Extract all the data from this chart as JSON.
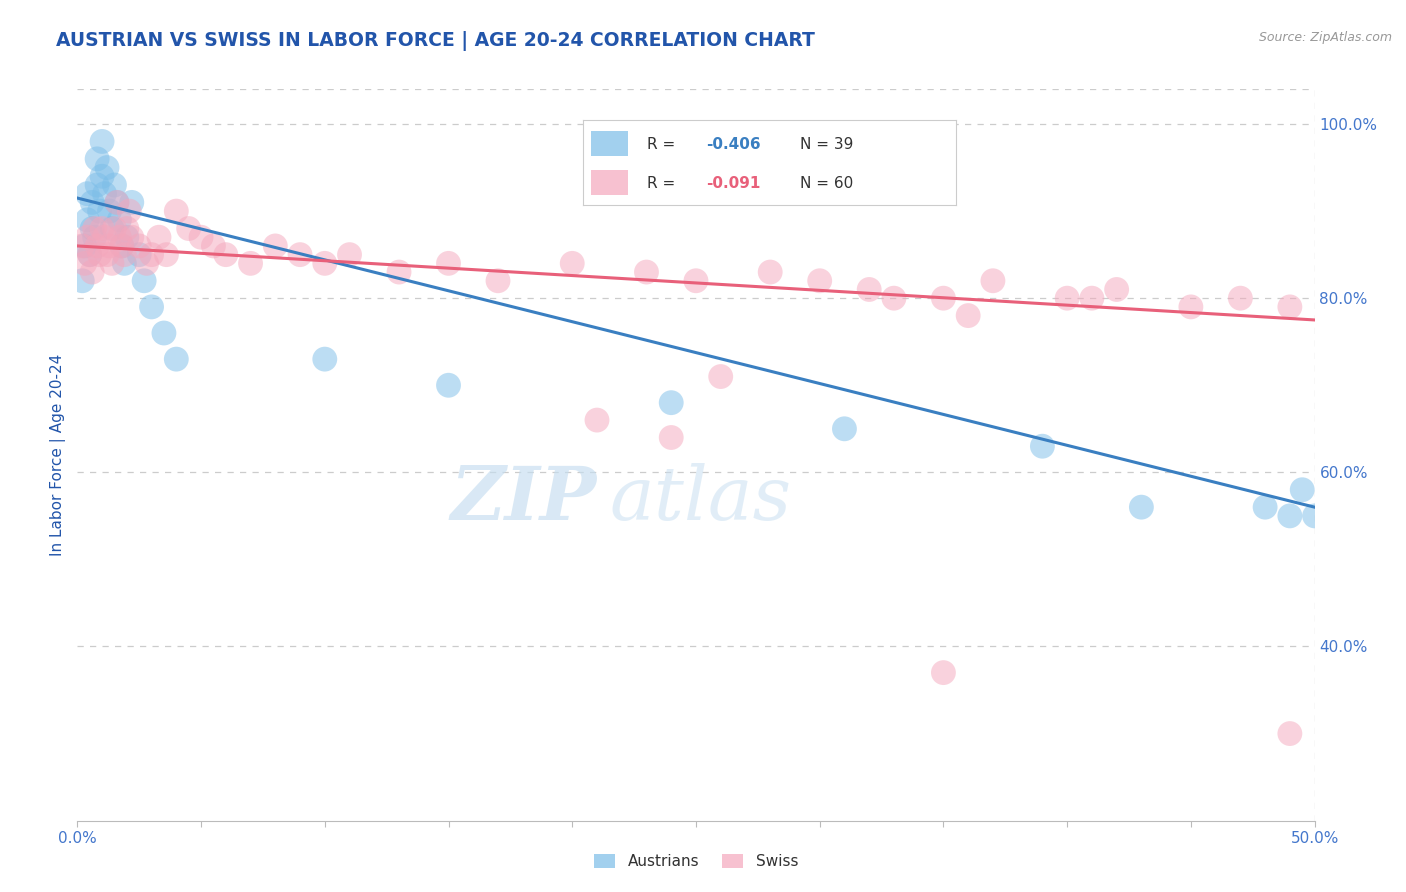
{
  "title": "AUSTRIAN VS SWISS IN LABOR FORCE | AGE 20-24 CORRELATION CHART",
  "source": "Source: ZipAtlas.com",
  "ylabel": "In Labor Force | Age 20-24",
  "xlim": [
    0.0,
    0.5
  ],
  "ylim": [
    0.2,
    1.04
  ],
  "yticks": [
    0.4,
    0.6,
    0.8,
    1.0
  ],
  "xticks": [
    0.0,
    0.05,
    0.1,
    0.15,
    0.2,
    0.25,
    0.3,
    0.35,
    0.4,
    0.45,
    0.5
  ],
  "ytick_labels": [
    "40.0%",
    "60.0%",
    "80.0%",
    "100.0%"
  ],
  "legend_blue_r_val": "-0.406",
  "legend_blue_n": "39",
  "legend_pink_r_val": "-0.091",
  "legend_pink_n": "60",
  "blue_color": "#7bbde8",
  "pink_color": "#f4a7bc",
  "blue_line_color": "#3a7fc1",
  "pink_line_color": "#e8607a",
  "title_color": "#2255aa",
  "axis_label_color": "#2255aa",
  "tick_color": "#4477cc",
  "grid_color": "#cccccc",
  "watermark_zip": "ZIP",
  "watermark_atlas": "atlas",
  "austrians_scatter_x": [
    0.002,
    0.003,
    0.004,
    0.004,
    0.005,
    0.006,
    0.006,
    0.007,
    0.008,
    0.008,
    0.009,
    0.01,
    0.01,
    0.011,
    0.012,
    0.013,
    0.014,
    0.015,
    0.016,
    0.017,
    0.018,
    0.019,
    0.02,
    0.022,
    0.025,
    0.027,
    0.03,
    0.035,
    0.04,
    0.1,
    0.15,
    0.24,
    0.31,
    0.39,
    0.43,
    0.48,
    0.49,
    0.495,
    0.5
  ],
  "austrians_scatter_y": [
    0.82,
    0.86,
    0.89,
    0.92,
    0.85,
    0.88,
    0.91,
    0.87,
    0.93,
    0.96,
    0.9,
    0.94,
    0.98,
    0.92,
    0.95,
    0.9,
    0.88,
    0.93,
    0.91,
    0.89,
    0.86,
    0.84,
    0.87,
    0.91,
    0.85,
    0.82,
    0.79,
    0.76,
    0.73,
    0.73,
    0.7,
    0.68,
    0.65,
    0.63,
    0.56,
    0.56,
    0.55,
    0.58,
    0.55
  ],
  "swiss_scatter_x": [
    0.002,
    0.003,
    0.004,
    0.005,
    0.006,
    0.007,
    0.008,
    0.009,
    0.01,
    0.011,
    0.012,
    0.013,
    0.014,
    0.015,
    0.016,
    0.017,
    0.018,
    0.019,
    0.02,
    0.021,
    0.022,
    0.025,
    0.028,
    0.03,
    0.033,
    0.036,
    0.04,
    0.045,
    0.05,
    0.055,
    0.06,
    0.07,
    0.08,
    0.09,
    0.1,
    0.11,
    0.13,
    0.15,
    0.17,
    0.2,
    0.23,
    0.25,
    0.28,
    0.3,
    0.32,
    0.35,
    0.37,
    0.4,
    0.42,
    0.45,
    0.47,
    0.49,
    0.24,
    0.21,
    0.26,
    0.33,
    0.36,
    0.41,
    0.35,
    0.49
  ],
  "swiss_scatter_y": [
    0.86,
    0.84,
    0.87,
    0.85,
    0.83,
    0.88,
    0.86,
    0.85,
    0.88,
    0.87,
    0.85,
    0.86,
    0.84,
    0.88,
    0.91,
    0.87,
    0.86,
    0.85,
    0.88,
    0.9,
    0.87,
    0.86,
    0.84,
    0.85,
    0.87,
    0.85,
    0.9,
    0.88,
    0.87,
    0.86,
    0.85,
    0.84,
    0.86,
    0.85,
    0.84,
    0.85,
    0.83,
    0.84,
    0.82,
    0.84,
    0.83,
    0.82,
    0.83,
    0.82,
    0.81,
    0.8,
    0.82,
    0.8,
    0.81,
    0.79,
    0.8,
    0.79,
    0.64,
    0.66,
    0.71,
    0.8,
    0.78,
    0.8,
    0.37,
    0.3
  ],
  "blue_trend_x": [
    0.0,
    0.5
  ],
  "blue_trend_y": [
    0.915,
    0.56
  ],
  "pink_trend_x": [
    0.0,
    0.5
  ],
  "pink_trend_y": [
    0.86,
    0.775
  ],
  "figsize": [
    14.06,
    8.92
  ],
  "dpi": 100
}
